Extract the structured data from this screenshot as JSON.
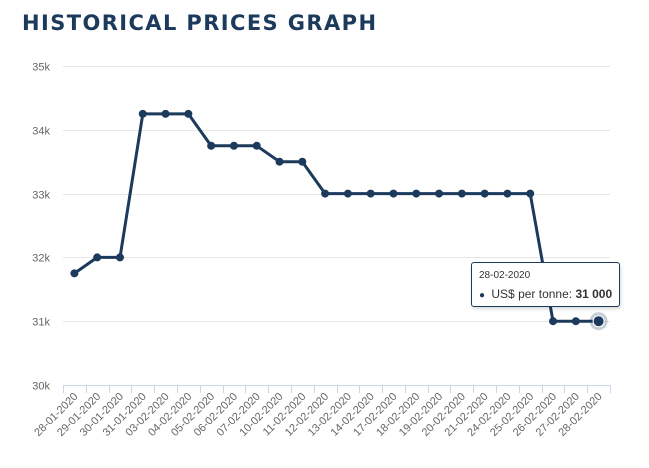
{
  "page": {
    "title": "HISTORICAL PRICES GRAPH"
  },
  "colors": {
    "line": "#1b3a5c",
    "grid": "#e6e6e6",
    "axis": "#ccd6eb",
    "tick_text": "#666666"
  },
  "tooltip": {
    "date": "28-02-2020",
    "series_label": "US$ per tonne:",
    "value": "31 000"
  },
  "chart_data": {
    "type": "line",
    "title": "HISTORICAL PRICES GRAPH",
    "xlabel": "",
    "ylabel": "",
    "grid": true,
    "ylim": [
      30000,
      35000
    ],
    "y_ticks": [
      {
        "value": 30000,
        "label": "30k"
      },
      {
        "value": 31000,
        "label": "31k"
      },
      {
        "value": 32000,
        "label": "32k"
      },
      {
        "value": 33000,
        "label": "33k"
      },
      {
        "value": 34000,
        "label": "34k"
      },
      {
        "value": 35000,
        "label": "35k"
      }
    ],
    "x": [
      "28-01-2020",
      "29-01-2020",
      "30-01-2020",
      "31-01-2020",
      "03-02-2020",
      "04-02-2020",
      "05-02-2020",
      "06-02-2020",
      "07-02-2020",
      "10-02-2020",
      "11-02-2020",
      "12-02-2020",
      "13-02-2020",
      "14-02-2020",
      "17-02-2020",
      "18-02-2020",
      "19-02-2020",
      "20-02-2020",
      "21-02-2020",
      "24-02-2020",
      "25-02-2020",
      "26-02-2020",
      "27-02-2020",
      "28-02-2020"
    ],
    "series": [
      {
        "name": "US$ per tonne",
        "values": [
          31750,
          32000,
          32000,
          34250,
          34250,
          34250,
          33750,
          33750,
          33750,
          33500,
          33500,
          33000,
          33000,
          33000,
          33000,
          33000,
          33000,
          33000,
          33000,
          33000,
          33000,
          31000,
          31000,
          31000
        ]
      }
    ],
    "highlighted_index": 23
  }
}
